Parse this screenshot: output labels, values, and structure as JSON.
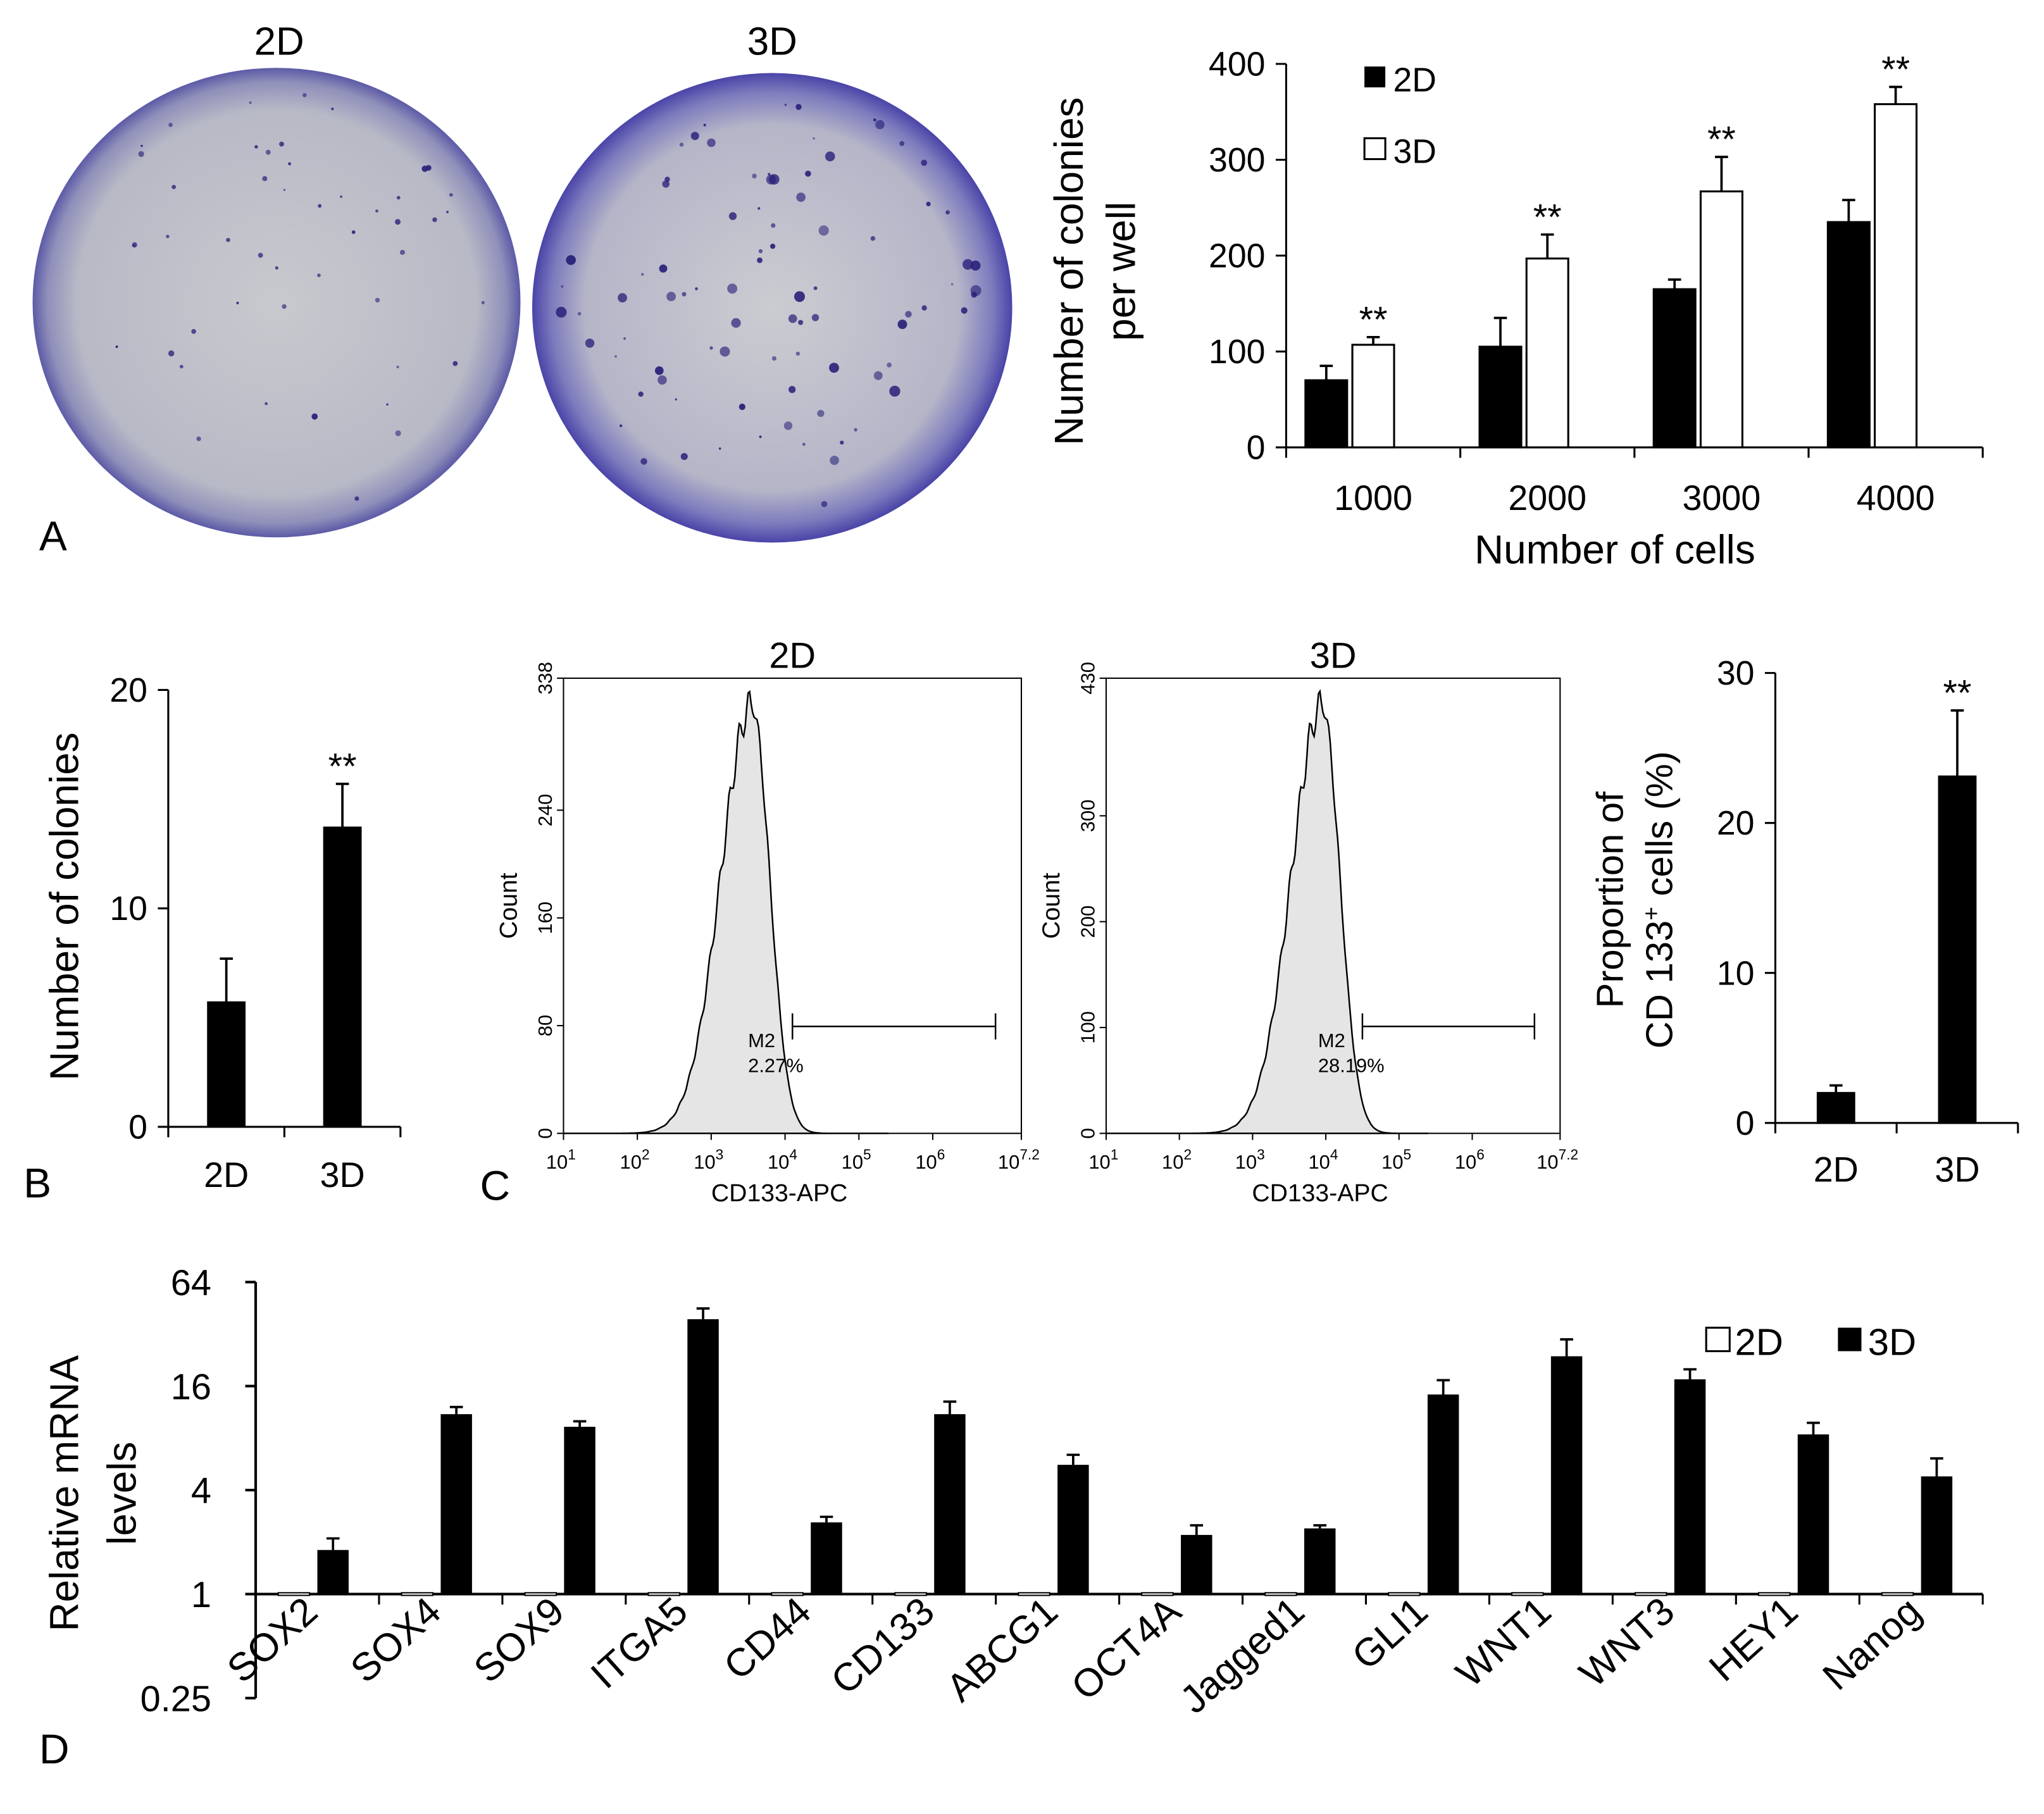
{
  "panels": {
    "a": {
      "letter": "A",
      "dish_labels": [
        "2D",
        "3D"
      ],
      "chart_data": {
        "type": "bar",
        "categories": [
          "1000",
          "2000",
          "3000",
          "4000"
        ],
        "series": [
          {
            "name": "2D",
            "values": [
              70,
              105,
              165,
              235
            ],
            "errors": [
              15,
              30,
              10,
              23
            ],
            "sig": [
              "",
              "",
              "",
              ""
            ]
          },
          {
            "name": "3D",
            "values": [
              107,
              197,
              267,
              358
            ],
            "errors": [
              8,
              25,
              36,
              18
            ],
            "sig": [
              "**",
              "**",
              "**",
              "**"
            ]
          }
        ],
        "ylim": [
          0,
          400
        ],
        "yticks": [
          0,
          100,
          200,
          300,
          400
        ],
        "xlabel": "Number of cells",
        "ylabel": [
          "Number of colonies",
          "per well"
        ],
        "legend_position": "top-left",
        "colors": {
          "2D": "#000000",
          "3D": "#ffffff"
        }
      }
    },
    "b": {
      "letter": "B",
      "chart_data": {
        "type": "bar",
        "categories": [
          "2D",
          "3D"
        ],
        "values": [
          5.7,
          13.7
        ],
        "errors": [
          2.0,
          2.0
        ],
        "sig": [
          "",
          "**"
        ],
        "ylim": [
          0,
          20
        ],
        "yticks": [
          0,
          10,
          20
        ],
        "ylabel": "Number of colonies",
        "xlabel": ""
      }
    },
    "c": {
      "letter": "C",
      "flow": [
        {
          "title": "2D",
          "ymax": 338,
          "yticks": [
            0,
            80,
            160,
            240,
            338
          ],
          "peak_log": 3.55,
          "gate_name": "M2",
          "gate_pct": "2.27%",
          "ylabel": "Count",
          "xlabel": "CD133-APC",
          "xticks": [
            "1",
            "2",
            "3",
            "4",
            "5",
            "6",
            "7.2"
          ]
        },
        {
          "title": "3D",
          "ymax": 430,
          "yticks": [
            0,
            100,
            200,
            300,
            430
          ],
          "peak_log": 3.95,
          "gate_name": "M2",
          "gate_pct": "28.19%",
          "ylabel": "Count",
          "xlabel": "CD133-APC",
          "xticks": [
            "1",
            "2",
            "3",
            "4",
            "5",
            "6",
            "7.2"
          ]
        }
      ],
      "chart_data": {
        "type": "bar",
        "categories": [
          "2D",
          "3D"
        ],
        "values": [
          2.0,
          23.1
        ],
        "errors": [
          0.5,
          4.4
        ],
        "sig": [
          "",
          "**"
        ],
        "ylim": [
          0,
          30
        ],
        "yticks": [
          0,
          10,
          20,
          30
        ],
        "ylabel": [
          "Proportion of",
          "CD 133",
          "+",
          " cells (%)"
        ],
        "xlabel": ""
      }
    },
    "d": {
      "letter": "D",
      "chart_data": {
        "type": "bar",
        "scale": "log2",
        "categories": [
          "SOX2",
          "SOX4",
          "SOX9",
          "ITGA5",
          "CD44",
          "CD133",
          "ABCG1",
          "OCT4A",
          "Jagged1",
          "GLI1",
          "WNT1",
          "WNT3",
          "HEY1",
          "Nanog"
        ],
        "series": [
          {
            "name": "2D",
            "values": [
              1,
              1,
              1,
              1,
              1,
              1,
              1,
              1,
              1,
              1,
              1,
              1,
              1,
              1
            ]
          },
          {
            "name": "3D",
            "values": [
              1.8,
              11.0,
              9.3,
              39.0,
              2.6,
              11.0,
              5.6,
              2.2,
              2.4,
              14.3,
              23.8,
              17.5,
              8.4,
              4.8
            ],
            "errors": [
              0.3,
              1.1,
              0.7,
              6.0,
              0.2,
              2.0,
              0.8,
              0.3,
              0.1,
              3.0,
              6.0,
              2.5,
              1.4,
              1.3
            ]
          }
        ],
        "ylim": [
          0.25,
          64
        ],
        "ytick_labels": [
          "0.25",
          "1",
          "4",
          "16",
          "64"
        ],
        "ylabel": [
          "Relative mRNA",
          "levels"
        ],
        "legend_position": "top-right",
        "colors": {
          "2D": "#ffffff",
          "3D": "#000000"
        }
      }
    }
  }
}
